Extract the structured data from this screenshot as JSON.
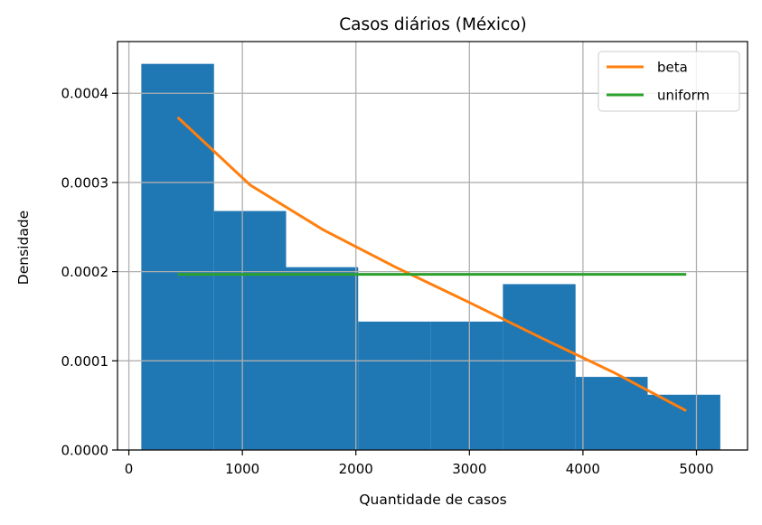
{
  "chart_data": {
    "type": "bar",
    "title": "Casos diários (México)",
    "xlabel": "Quantidade de casos",
    "ylabel": "Densidade",
    "xlim": [
      -100,
      5450
    ],
    "ylim": [
      0,
      0.000458
    ],
    "xticks": [
      0,
      1000,
      2000,
      3000,
      4000,
      5000
    ],
    "xtick_labels": [
      "0",
      "1000",
      "2000",
      "3000",
      "4000",
      "5000"
    ],
    "yticks": [
      0,
      0.0001,
      0.0002,
      0.0003,
      0.0004
    ],
    "ytick_labels": [
      "0.0000",
      "0.0001",
      "0.0002",
      "0.0003",
      "0.0004"
    ],
    "grid": true,
    "legend_position": "top-right",
    "histogram": {
      "color": "#1f77b4",
      "bins": [
        {
          "x0": 110,
          "x1": 750,
          "value": 0.000433
        },
        {
          "x0": 750,
          "x1": 1385,
          "value": 0.000268
        },
        {
          "x0": 1385,
          "x1": 2020,
          "value": 0.000205
        },
        {
          "x0": 2020,
          "x1": 2660,
          "value": 0.000144
        },
        {
          "x0": 2660,
          "x1": 3295,
          "value": 0.000144
        },
        {
          "x0": 3295,
          "x1": 3935,
          "value": 0.000186
        },
        {
          "x0": 3935,
          "x1": 4570,
          "value": 8.2e-05
        },
        {
          "x0": 4570,
          "x1": 5210,
          "value": 6.2e-05
        }
      ]
    },
    "series": [
      {
        "name": "beta",
        "color": "#ff7f0e",
        "points": [
          {
            "x": 430,
            "y": 0.000373
          },
          {
            "x": 1070,
            "y": 0.000297
          },
          {
            "x": 1710,
            "y": 0.000247
          },
          {
            "x": 2350,
            "y": 0.000205
          },
          {
            "x": 2990,
            "y": 0.000166
          },
          {
            "x": 3630,
            "y": 0.000126
          },
          {
            "x": 4270,
            "y": 8.7e-05
          },
          {
            "x": 4910,
            "y": 4.4e-05
          }
        ]
      },
      {
        "name": "uniform",
        "color": "#2ca02c",
        "points": [
          {
            "x": 430,
            "y": 0.000197
          },
          {
            "x": 4910,
            "y": 0.000197
          }
        ]
      }
    ]
  }
}
